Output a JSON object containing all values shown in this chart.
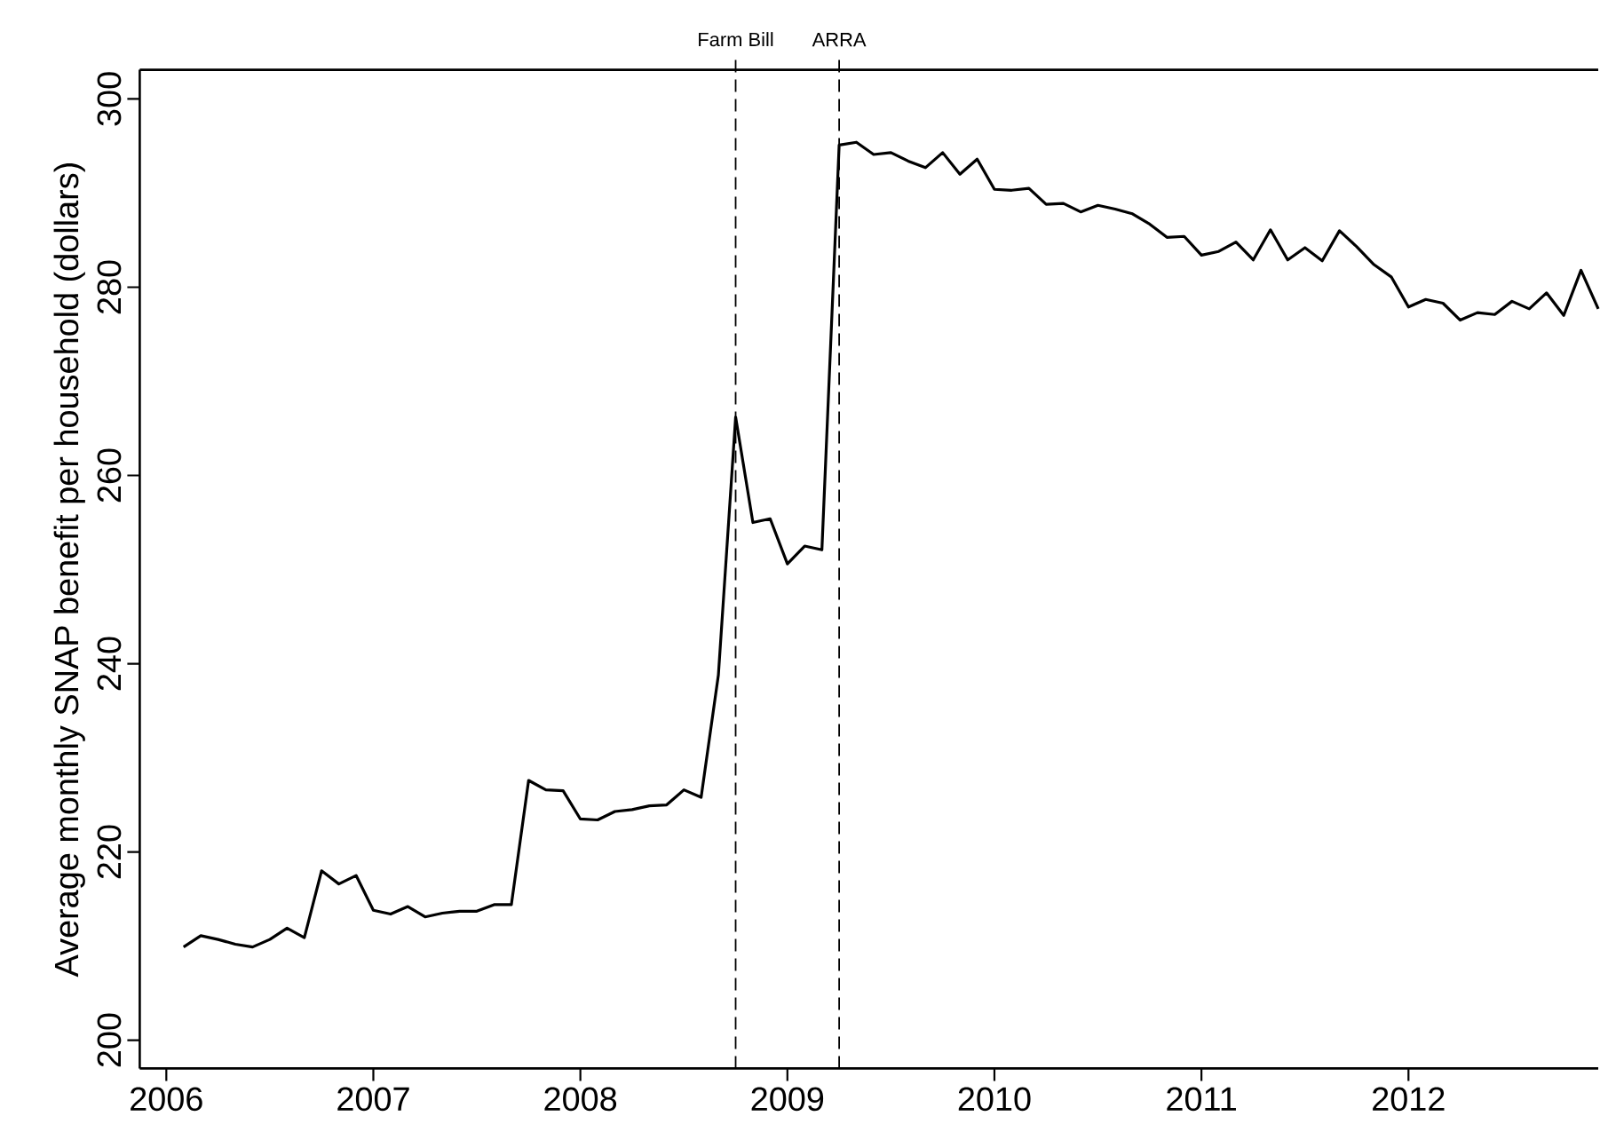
{
  "chart_data": {
    "type": "line",
    "ylabel": "Average monthly SNAP benefit per household (dollars)",
    "x": [
      "2006-02",
      "2006-03",
      "2006-04",
      "2006-05",
      "2006-06",
      "2006-07",
      "2006-08",
      "2006-09",
      "2006-10",
      "2006-11",
      "2006-12",
      "2007-01",
      "2007-02",
      "2007-03",
      "2007-04",
      "2007-05",
      "2007-06",
      "2007-07",
      "2007-08",
      "2007-09",
      "2007-10",
      "2007-11",
      "2007-12",
      "2008-01",
      "2008-02",
      "2008-03",
      "2008-04",
      "2008-05",
      "2008-06",
      "2008-07",
      "2008-08",
      "2008-09",
      "2008-10",
      "2008-11",
      "2008-12",
      "2009-01",
      "2009-02",
      "2009-03",
      "2009-04",
      "2009-05",
      "2009-06",
      "2009-07",
      "2009-08",
      "2009-09",
      "2009-10",
      "2009-11",
      "2009-12",
      "2010-01",
      "2010-02",
      "2010-03",
      "2010-04",
      "2010-05",
      "2010-06",
      "2010-07",
      "2010-08",
      "2010-09",
      "2010-10",
      "2010-11",
      "2010-12",
      "2011-01",
      "2011-02",
      "2011-03",
      "2011-04",
      "2011-05",
      "2011-06",
      "2011-07",
      "2011-08",
      "2011-09",
      "2011-10",
      "2011-11",
      "2011-12",
      "2012-01",
      "2012-02",
      "2012-03",
      "2012-04",
      "2012-05",
      "2012-06",
      "2012-07",
      "2012-08",
      "2012-09",
      "2012-10",
      "2012-11",
      "2012-12"
    ],
    "series": [
      {
        "color": "#000000",
        "values": [
          209.9,
          211.1,
          210.7,
          210.2,
          209.9,
          210.7,
          211.9,
          210.9,
          218.0,
          216.6,
          217.5,
          213.8,
          213.4,
          214.2,
          213.1,
          213.5,
          213.7,
          213.7,
          214.4,
          214.4,
          227.6,
          226.6,
          226.5,
          223.5,
          223.4,
          224.3,
          224.5,
          224.9,
          225.0,
          226.6,
          225.8,
          238.8,
          266.2,
          255.0,
          255.4,
          250.6,
          252.5,
          252.1,
          295.1,
          295.4,
          294.1,
          294.3,
          293.4,
          292.7,
          294.3,
          292.0,
          293.6,
          290.4,
          290.3,
          290.5,
          288.8,
          288.9,
          288.0,
          288.7,
          288.3,
          287.8,
          286.7,
          285.3,
          285.4,
          283.4,
          283.8,
          284.8,
          282.9,
          286.1,
          282.9,
          284.2,
          282.8,
          286.0,
          284.3,
          282.4,
          281.1,
          277.9,
          278.7,
          278.3,
          276.5,
          277.3,
          277.1,
          278.5,
          277.7,
          279.4,
          277.0,
          281.8,
          277.7
        ]
      }
    ],
    "xlim": [
      "2005-11-15",
      "2012-12"
    ],
    "xticks": [
      "2006",
      "2007",
      "2008",
      "2009",
      "2010",
      "2011",
      "2012"
    ],
    "ylim": [
      197,
      303.1
    ],
    "yticks": [
      200,
      220,
      240,
      260,
      280,
      300
    ],
    "grid": false,
    "marker": "none",
    "line_style": "solid",
    "ref_lines": [
      {
        "axis": "x",
        "value": "2008-10",
        "label": "Farm Bill",
        "color": "#000000",
        "line_style": "dashed"
      },
      {
        "axis": "x",
        "value": "2009-04",
        "label": "ARRA",
        "color": "#000000",
        "line_style": "dashed"
      }
    ]
  }
}
